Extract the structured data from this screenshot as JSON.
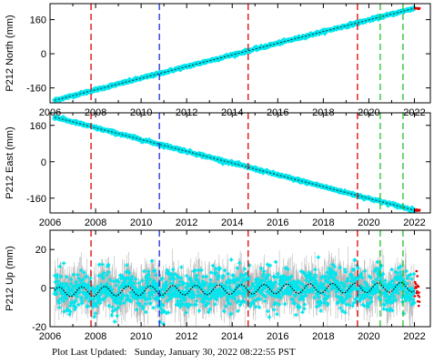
{
  "footer": {
    "label": "Plot Last Updated:",
    "timestamp": "Sunday, January 30, 2022 08:22:55 PST"
  },
  "colors": {
    "data_points": "#00e5ee",
    "error_bars": "#b8b8b8",
    "model_fit": "#000000",
    "last_points": "#e00000",
    "vline_red": "#e00000",
    "vline_blue": "#1e2ad8",
    "vline_green": "#22c02a"
  },
  "chart_data": [
    {
      "type": "scatter",
      "ylabel": "P212 North (mm)",
      "xlim": [
        2006.0,
        2022.7
      ],
      "ylim": [
        -230,
        235
      ],
      "xticks": [
        2006,
        2008,
        2010,
        2012,
        2014,
        2016,
        2018,
        2020,
        2022
      ],
      "yticks": [
        -160,
        0,
        160
      ],
      "trend": {
        "x": [
          2006.2,
          2022.0
        ],
        "y": [
          -218,
          213
        ]
      },
      "noise_mm": 3,
      "vertical_lines": [
        {
          "x": 2007.8,
          "color": "red"
        },
        {
          "x": 2010.8,
          "color": "blue"
        },
        {
          "x": 2014.7,
          "color": "red"
        },
        {
          "x": 2019.5,
          "color": "red"
        },
        {
          "x": 2020.5,
          "color": "green"
        },
        {
          "x": 2021.5,
          "color": "green"
        }
      ]
    },
    {
      "type": "scatter",
      "ylabel": "P212 East (mm)",
      "xlim": [
        2006.0,
        2022.7
      ],
      "ylim": [
        -225,
        215
      ],
      "xticks": [
        2006,
        2008,
        2010,
        2012,
        2014,
        2016,
        2018,
        2020,
        2022
      ],
      "yticks": [
        -160,
        0,
        160
      ],
      "trend": {
        "x": [
          2006.2,
          2022.0
        ],
        "y": [
          196,
          -213
        ]
      },
      "noise_mm": 3,
      "vertical_lines": [
        {
          "x": 2007.8,
          "color": "red"
        },
        {
          "x": 2010.8,
          "color": "blue"
        },
        {
          "x": 2014.7,
          "color": "red"
        },
        {
          "x": 2019.5,
          "color": "red"
        },
        {
          "x": 2020.5,
          "color": "green"
        },
        {
          "x": 2021.5,
          "color": "green"
        }
      ]
    },
    {
      "type": "scatter",
      "ylabel": "P212 Up (mm)",
      "xlim": [
        2006.0,
        2022.7
      ],
      "ylim": [
        -20,
        30
      ],
      "xticks": [
        2006,
        2008,
        2010,
        2012,
        2014,
        2016,
        2018,
        2020,
        2022
      ],
      "yticks": [
        -20,
        0,
        20
      ],
      "trend": {
        "x": [
          2006.2,
          2022.0
        ],
        "y": [
          -2,
          0.5
        ]
      },
      "seasonal_amplitude_mm": 2.5,
      "noise_mm": 5,
      "error_bar_mm": 6,
      "vertical_lines": [
        {
          "x": 2007.8,
          "color": "red"
        },
        {
          "x": 2010.8,
          "color": "blue"
        },
        {
          "x": 2014.7,
          "color": "red"
        },
        {
          "x": 2019.5,
          "color": "red"
        },
        {
          "x": 2020.5,
          "color": "green"
        },
        {
          "x": 2021.5,
          "color": "green"
        }
      ]
    }
  ]
}
